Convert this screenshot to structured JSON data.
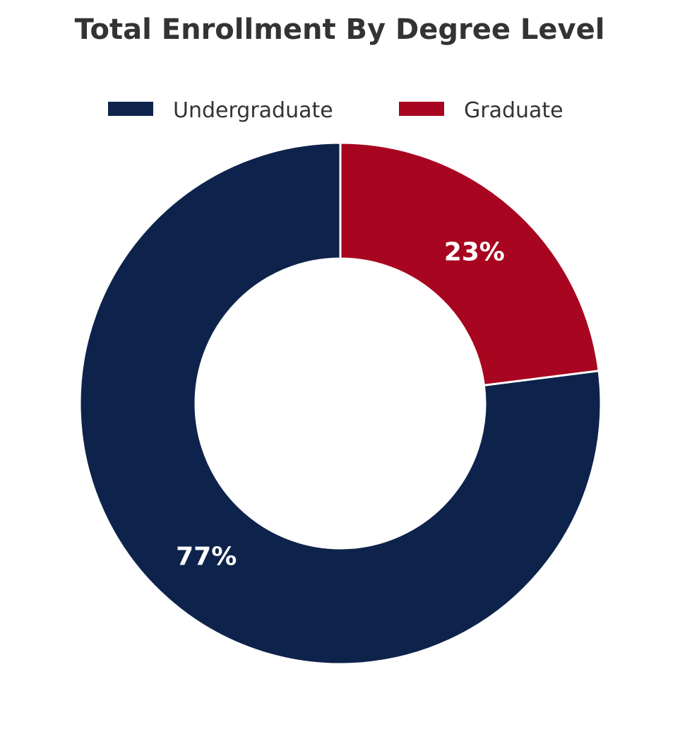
{
  "chart_data": {
    "type": "pie",
    "title": "Total Enrollment By Degree Level",
    "categories": [
      "Undergraduate",
      "Graduate"
    ],
    "values": [
      77,
      23
    ],
    "labels": [
      "77%",
      "23%"
    ],
    "colors": [
      "#0e234b",
      "#a80620"
    ],
    "donut": true,
    "legend": "top-center"
  }
}
